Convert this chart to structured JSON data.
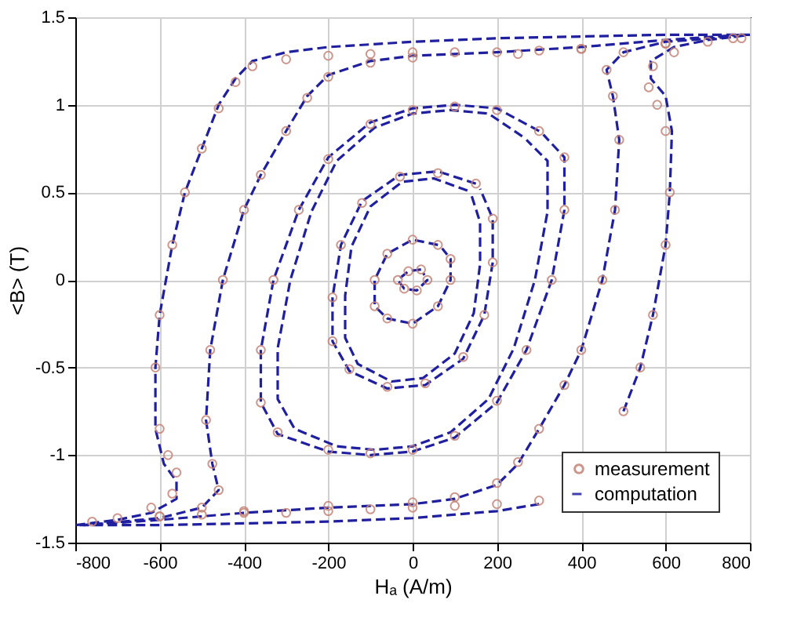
{
  "chart_data": {
    "type": "line",
    "xlabel": "Hₐ (A/m)",
    "ylabel": "<B> (T)",
    "xlim": [
      -800,
      800
    ],
    "ylim": [
      -1.5,
      1.5
    ],
    "xticks": [
      -800,
      -600,
      -400,
      -200,
      0,
      200,
      400,
      600,
      800
    ],
    "yticks": [
      -1.5,
      -1,
      -0.5,
      0,
      0.5,
      1,
      1.5
    ],
    "grid": true,
    "legend": "bottom right",
    "series": [
      {
        "name": "measurement",
        "type": "scatter",
        "marker": "circle",
        "color": "#c48478",
        "x": [
          780,
          600,
          400,
          300,
          200,
          100,
          0,
          -100,
          -200,
          -300,
          -380,
          -420,
          -460,
          -500,
          -540,
          -570,
          -600,
          -610,
          -600,
          -580,
          -560,
          -570,
          -620,
          -700,
          -760,
          -600,
          -500,
          -400,
          -300,
          -200,
          -100,
          0,
          100,
          200,
          300,
          500,
          540,
          570,
          600,
          610,
          600,
          580,
          560,
          570,
          620,
          700,
          760,
          600,
          400,
          250,
          0,
          -100,
          -200,
          -250,
          -300,
          -360,
          -400,
          -450,
          -480,
          -490,
          -475,
          -460,
          -500,
          -600,
          -400,
          -200,
          0,
          100,
          200,
          250,
          300,
          360,
          400,
          450,
          480,
          490,
          475,
          460,
          500,
          600,
          200,
          100,
          0,
          -100,
          -200,
          -270,
          -330,
          -360,
          -360,
          -320,
          -200,
          -100,
          0,
          100,
          200,
          270,
          330,
          360,
          360,
          300,
          150,
          60,
          -30,
          -120,
          -170,
          -190,
          -190,
          -150,
          -60,
          30,
          120,
          170,
          190,
          190,
          60,
          0,
          -60,
          -90,
          -90,
          -60,
          0,
          60,
          90,
          90,
          20,
          -10,
          -35,
          -20,
          10,
          35
        ],
        "values": [
          1.38,
          1.35,
          1.32,
          1.31,
          1.3,
          1.3,
          1.3,
          1.29,
          1.28,
          1.26,
          1.22,
          1.13,
          0.98,
          0.75,
          0.5,
          0.2,
          -0.2,
          -0.5,
          -0.85,
          -1.0,
          -1.1,
          -1.22,
          -1.3,
          -1.36,
          -1.38,
          -1.35,
          -1.34,
          -1.33,
          -1.33,
          -1.32,
          -1.31,
          -1.3,
          -1.29,
          -1.28,
          -1.26,
          -0.75,
          -0.5,
          -0.2,
          0.2,
          0.5,
          0.85,
          1.0,
          1.1,
          1.22,
          1.3,
          1.36,
          1.38,
          1.35,
          1.32,
          1.29,
          1.27,
          1.24,
          1.16,
          1.04,
          0.85,
          0.6,
          0.4,
          0.0,
          -0.4,
          -0.8,
          -1.05,
          -1.2,
          -1.3,
          -1.35,
          -1.32,
          -1.29,
          -1.27,
          -1.24,
          -1.16,
          -1.04,
          -0.85,
          -0.6,
          -0.4,
          0.0,
          0.4,
          0.8,
          1.05,
          1.2,
          1.3,
          1.35,
          0.97,
          0.99,
          0.97,
          0.89,
          0.69,
          0.4,
          0.0,
          -0.4,
          -0.7,
          -0.87,
          -0.97,
          -0.99,
          -0.97,
          -0.89,
          -0.69,
          -0.4,
          0.0,
          0.4,
          0.7,
          0.85,
          0.55,
          0.61,
          0.59,
          0.44,
          0.2,
          -0.1,
          -0.35,
          -0.51,
          -0.61,
          -0.59,
          -0.44,
          -0.2,
          0.1,
          0.35,
          0.2,
          0.23,
          0.15,
          0.0,
          -0.15,
          -0.22,
          -0.25,
          -0.15,
          0.0,
          0.12,
          0.06,
          0.05,
          0.0,
          -0.05,
          -0.06,
          0.0
        ]
      },
      {
        "name": "computation",
        "line_style": "dashed",
        "color": "#1f1fa0",
        "x": [
          800,
          600,
          400,
          200,
          0,
          -200,
          -300,
          -380,
          -420,
          -460,
          -500,
          -540,
          -570,
          -600,
          -610,
          -610,
          -590,
          -560,
          -560,
          -620,
          -700,
          -800,
          -600,
          -400,
          -200,
          0,
          200,
          300,
          380,
          420,
          460,
          500,
          540,
          570,
          600,
          610,
          615,
          600,
          565,
          565,
          620,
          700,
          800
        ],
        "values": [
          1.4,
          1.4,
          1.39,
          1.38,
          1.36,
          1.33,
          1.3,
          1.25,
          1.15,
          1.0,
          0.75,
          0.5,
          0.2,
          -0.2,
          -0.5,
          -0.85,
          -1.05,
          -1.15,
          -1.25,
          -1.33,
          -1.37,
          -1.4,
          -1.4,
          -1.39,
          -1.38,
          -1.36,
          -1.32,
          -1.28,
          null,
          null,
          null,
          -0.75,
          -0.5,
          -0.2,
          0.2,
          0.5,
          0.85,
          1.05,
          1.15,
          1.25,
          1.33,
          1.37,
          1.4
        ]
      },
      {
        "line_style": "dashed",
        "color": "#1f1fa0",
        "x": [
          780,
          600,
          400,
          200,
          0,
          -100,
          -200,
          -250,
          -300,
          -360,
          -400,
          -450,
          -480,
          -490,
          -475,
          -460,
          -500,
          -600,
          -780,
          -600,
          -400,
          -200,
          0,
          100,
          200,
          250,
          300,
          360,
          400,
          450,
          480,
          490,
          475,
          460,
          500,
          600,
          770
        ],
        "values": [
          1.4,
          1.37,
          1.33,
          1.3,
          1.28,
          1.25,
          1.17,
          1.05,
          0.85,
          0.6,
          0.4,
          0.0,
          -0.4,
          -0.8,
          -1.05,
          -1.2,
          -1.3,
          -1.36,
          -1.4,
          -1.37,
          -1.33,
          -1.3,
          -1.28,
          -1.25,
          -1.17,
          -1.05,
          -0.85,
          -0.6,
          -0.4,
          0.0,
          0.4,
          0.8,
          1.05,
          1.2,
          1.3,
          1.36,
          1.39
        ]
      },
      {
        "line_style": "dashed",
        "color": "#1f1fa0",
        "x": [
          300,
          200,
          100,
          0,
          -100,
          -200,
          -270,
          -330,
          -360,
          -360,
          -320,
          -200,
          -100,
          0,
          100,
          200,
          270,
          330,
          360,
          360,
          310
        ],
        "values": [
          0.85,
          0.98,
          1.0,
          0.98,
          0.9,
          0.7,
          0.4,
          0.0,
          -0.4,
          -0.7,
          -0.88,
          -0.98,
          -1.0,
          -0.98,
          -0.9,
          -0.7,
          -0.4,
          0.0,
          0.4,
          0.7,
          0.83
        ]
      },
      {
        "line_style": "dashed",
        "color": "#1f1fa0",
        "x": [
          260,
          180,
          90,
          0,
          -90,
          -180,
          -240,
          -290,
          -320,
          -320,
          -280,
          -180,
          -90,
          0,
          90,
          180,
          240,
          290,
          320,
          320,
          270
        ],
        "values": [
          0.82,
          0.95,
          0.97,
          0.95,
          0.87,
          0.68,
          0.39,
          0.0,
          -0.39,
          -0.68,
          -0.85,
          -0.95,
          -0.97,
          -0.95,
          -0.87,
          -0.68,
          -0.39,
          0.0,
          0.39,
          0.68,
          0.8
        ]
      },
      {
        "line_style": "dashed",
        "color": "#1f1fa0",
        "x": [
          150,
          60,
          -30,
          -120,
          -170,
          -190,
          -190,
          -150,
          -60,
          30,
          120,
          170,
          190,
          190,
          160
        ],
        "values": [
          0.55,
          0.62,
          0.6,
          0.45,
          0.2,
          -0.1,
          -0.35,
          -0.52,
          -0.62,
          -0.6,
          -0.45,
          -0.2,
          0.1,
          0.35,
          0.52
        ]
      },
      {
        "line_style": "dashed",
        "color": "#1f1fa0",
        "x": [
          130,
          50,
          -25,
          -100,
          -145,
          -160,
          -160,
          -130,
          -50,
          25,
          100,
          145,
          160,
          160,
          140
        ],
        "values": [
          0.51,
          0.58,
          0.56,
          0.42,
          0.19,
          -0.09,
          -0.33,
          -0.48,
          -0.58,
          -0.56,
          -0.42,
          -0.19,
          0.09,
          0.33,
          0.48
        ]
      },
      {
        "line_style": "dashed",
        "color": "#1f1fa0",
        "x": [
          60,
          0,
          -60,
          -90,
          -90,
          -60,
          0,
          60,
          90,
          90,
          70
        ],
        "values": [
          0.2,
          0.23,
          0.15,
          0.0,
          -0.15,
          -0.22,
          -0.25,
          -0.15,
          0.0,
          0.12,
          0.18
        ]
      },
      {
        "line_style": "dashed",
        "color": "#1f1fa0",
        "x": [
          20,
          -10,
          -35,
          -20,
          10,
          35,
          25
        ],
        "values": [
          0.06,
          0.05,
          0.0,
          -0.05,
          -0.06,
          0.0,
          0.04
        ]
      }
    ]
  }
}
